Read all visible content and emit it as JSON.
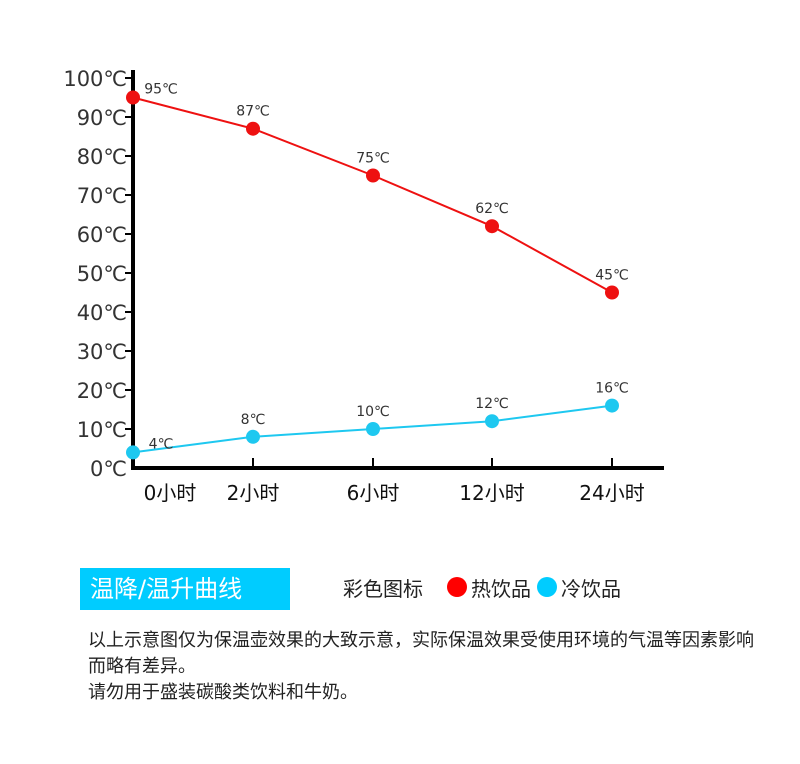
{
  "chart_data": {
    "type": "line",
    "categories": [
      "0小时",
      "2小时",
      "6小时",
      "12小时",
      "24小时"
    ],
    "y_ticks": [
      "0℃",
      "10℃",
      "20℃",
      "30℃",
      "40℃",
      "50℃",
      "60℃",
      "70℃",
      "80℃",
      "90℃",
      "100℃"
    ],
    "ylim": [
      0,
      100
    ],
    "series": [
      {
        "name": "热饮品",
        "color": "#ee1111",
        "values": [
          95,
          87,
          75,
          62,
          45
        ],
        "labels": [
          "95℃",
          "87℃",
          "75℃",
          "62℃",
          "45℃"
        ]
      },
      {
        "name": "冷饮品",
        "color": "#1ec8f0",
        "values": [
          4,
          8,
          10,
          12,
          16
        ],
        "labels": [
          "4℃",
          "8℃",
          "10℃",
          "12℃",
          "16℃"
        ]
      }
    ],
    "title": "温降/温升曲线",
    "legend_position": "bottom"
  },
  "legend": {
    "label": "彩色图标",
    "hot": "热饮品",
    "cold": "冷饮品",
    "hot_color": "#ff0000",
    "cold_color": "#00ccff"
  },
  "note": {
    "line1": "以上示意图仅为保温壶效果的大致示意，实际保温效果受使用环境的气温等因素影响而略有差异。",
    "line2": "请勿用于盛装碳酸类饮料和牛奶。"
  }
}
